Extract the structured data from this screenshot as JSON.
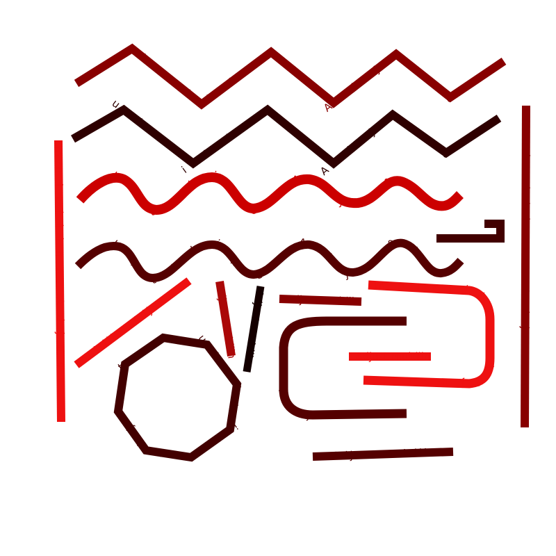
{
  "colors": {
    "maroon": "#880000",
    "nearblack": "#2e0000",
    "red": "#cc0000",
    "darkred": "#550000",
    "brightred": "#ee1111",
    "crimson": "#aa0808",
    "brown": "#420000",
    "black": "#140000"
  },
  "strokes": [
    {
      "id": "zigzag-top",
      "color": "maroon",
      "label": "multiline Adjust"
    },
    {
      "id": "zigzag-second",
      "color": "nearblack",
      "label": "multiline Adjust"
    },
    {
      "id": "wave-red",
      "color": "red",
      "label": "multiline Adjust"
    },
    {
      "id": "wave-dark",
      "color": "darkred",
      "label": "multiline Adjust"
    },
    {
      "id": "left-vertical-bar",
      "color": "brightred",
      "label": "multiline Adjust"
    },
    {
      "id": "right-vertical-bar",
      "color": "maroon",
      "label": "multiline Adjust"
    },
    {
      "id": "diagonal-red",
      "color": "brightred",
      "label": "multiline Adjust"
    },
    {
      "id": "short-red-slant",
      "color": "crimson",
      "label": "Adjust multiline"
    },
    {
      "id": "black-slant",
      "color": "black",
      "label": "Adjust multiline"
    },
    {
      "id": "small-horizontal",
      "color": "maroon",
      "label": "Adjust multiline"
    },
    {
      "id": "octagon",
      "color": "brown",
      "label": "multiline Adjust"
    },
    {
      "id": "bracket-dark",
      "color": "darkred",
      "label": "multiline Adjust"
    },
    {
      "id": "red-hook",
      "color": "brightred",
      "label": "multiline Adjust"
    },
    {
      "id": "middle-red-bar",
      "color": "brightred",
      "label": "Adjust multiline"
    },
    {
      "id": "bottom-bar",
      "color": "darkred",
      "label": "Adjust multiline"
    },
    {
      "id": "corner-hook",
      "color": "brown",
      "label": ""
    }
  ]
}
